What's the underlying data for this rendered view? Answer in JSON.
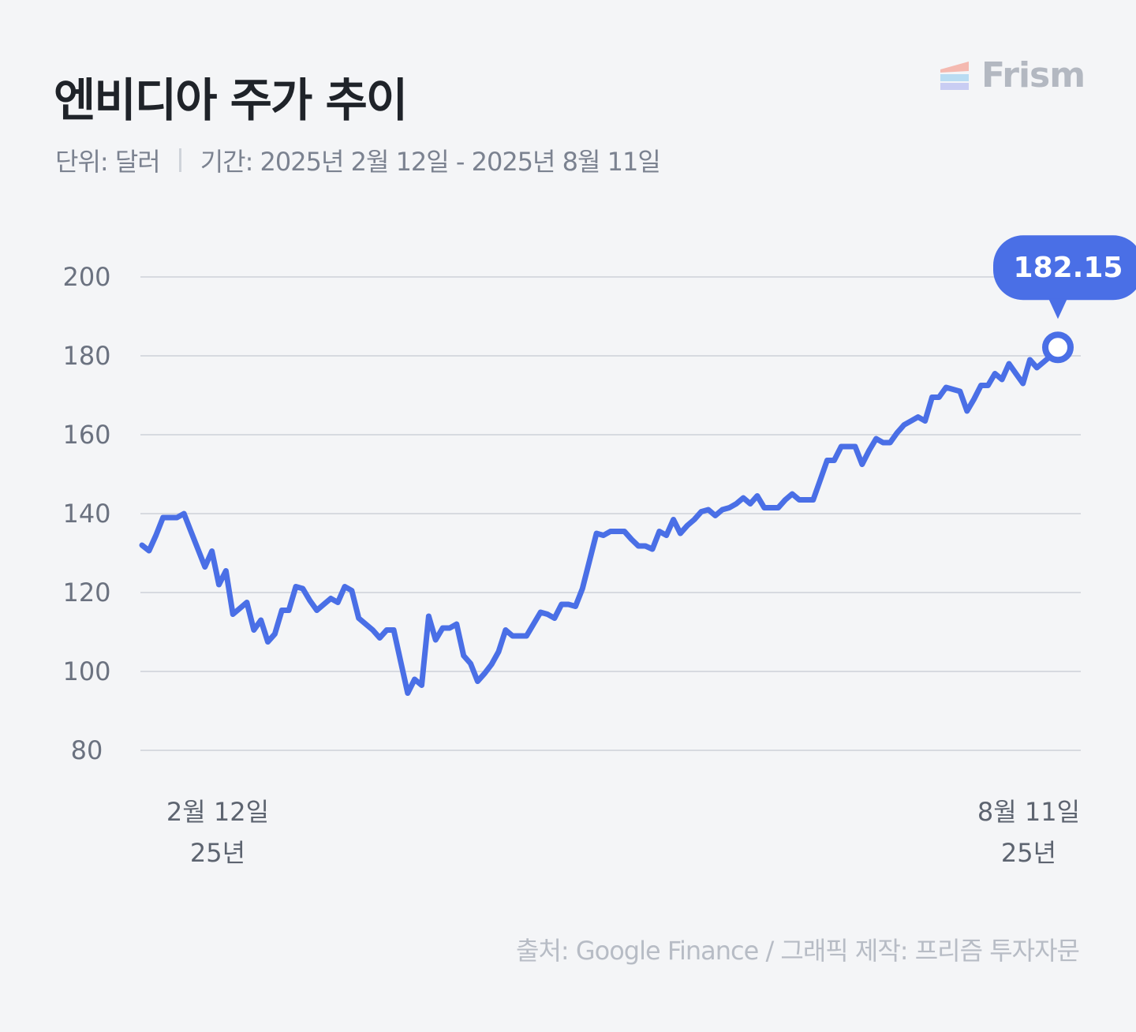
{
  "header": {
    "title": "엔비디아 주가 추이",
    "unit": "단위: 달러",
    "period": "기간: 2025년 2월 12일 - 2025년 8월 11일"
  },
  "logo": {
    "text": "Frism",
    "icon": "frism-logo-icon"
  },
  "footer": {
    "source": "출처: Google Finance / 그래픽 제작: 프리즘 투자자문"
  },
  "colors": {
    "line": "#4a6fe6",
    "grid": "#d7dae0",
    "background": "#f4f5f7"
  },
  "chart_data": {
    "type": "line",
    "title": "엔비디아 주가 추이",
    "unit": "달러",
    "ylim": [
      80,
      200
    ],
    "yticks": [
      80,
      100,
      120,
      140,
      160,
      180,
      200
    ],
    "grid": true,
    "x_start_label": [
      "2월 12일",
      "25년"
    ],
    "x_end_label": [
      "8월 11일",
      "25년"
    ],
    "last_value_label": "182.15",
    "series": [
      {
        "values": [
          132.0,
          130.6,
          134.5,
          139.0,
          139.0,
          139.0,
          140.0,
          135.5,
          131.0,
          126.5,
          130.5,
          122.0,
          125.5,
          114.5,
          116.0,
          117.5,
          110.5,
          113.0,
          107.5,
          109.5,
          115.5,
          115.5,
          121.5,
          121.0,
          118.0,
          115.5,
          117.0,
          118.5,
          117.5,
          121.5,
          120.5,
          113.5,
          112.0,
          110.5,
          108.5,
          110.5,
          110.5,
          102.5,
          94.5,
          98.0,
          96.5,
          114.0,
          108.0,
          111.0,
          111.0,
          112.0,
          104.0,
          102.0,
          97.5,
          99.5,
          101.8,
          105.0,
          110.5,
          109.0,
          109.0,
          109.0,
          112.0,
          115.0,
          114.5,
          113.5,
          117.0,
          117.0,
          116.5,
          121.0,
          128.0,
          135.0,
          134.5,
          135.5,
          135.5,
          135.5,
          133.5,
          131.8,
          131.8,
          131.0,
          135.5,
          134.5,
          138.5,
          135.0,
          137.0,
          138.5,
          140.5,
          141.0,
          139.5,
          141.0,
          141.5,
          142.5,
          144.0,
          142.5,
          144.5,
          141.5,
          141.5,
          141.5,
          143.5,
          145.0,
          143.5,
          143.5,
          143.5,
          148.5,
          153.5,
          153.5,
          157.0,
          157.0,
          157.0,
          152.5,
          156.0,
          159.0,
          158.0,
          158.0,
          160.5,
          162.5,
          163.5,
          164.5,
          163.5,
          169.5,
          169.5,
          172.0,
          171.5,
          171.0,
          166.0,
          169.0,
          172.5,
          172.5,
          175.5,
          174.0,
          178.0,
          175.5,
          173.0,
          179.0,
          177.0,
          178.5,
          180.0,
          182.15
        ]
      }
    ]
  }
}
